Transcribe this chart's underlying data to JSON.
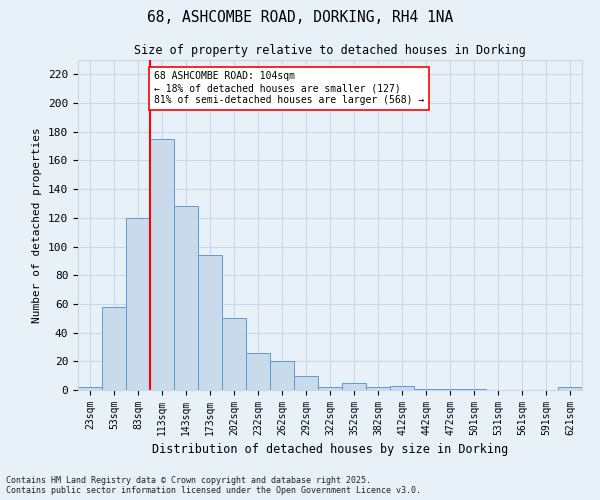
{
  "title_line1": "68, ASHCOMBE ROAD, DORKING, RH4 1NA",
  "title_line2": "Size of property relative to detached houses in Dorking",
  "xlabel": "Distribution of detached houses by size in Dorking",
  "ylabel": "Number of detached properties",
  "categories": [
    "23sqm",
    "53sqm",
    "83sqm",
    "113sqm",
    "143sqm",
    "173sqm",
    "202sqm",
    "232sqm",
    "262sqm",
    "292sqm",
    "322sqm",
    "352sqm",
    "382sqm",
    "412sqm",
    "442sqm",
    "472sqm",
    "501sqm",
    "531sqm",
    "561sqm",
    "591sqm",
    "621sqm"
  ],
  "values": [
    2,
    58,
    120,
    175,
    128,
    94,
    50,
    26,
    20,
    10,
    2,
    5,
    2,
    3,
    1,
    1,
    1,
    0,
    0,
    0,
    2
  ],
  "bar_color": "#c9daea",
  "bar_edge_color": "#5b9bd5",
  "grid_color": "#c8d8e8",
  "vline_x_index": 3,
  "vline_color": "red",
  "annotation_text": "68 ASHCOMBE ROAD: 104sqm\n← 18% of detached houses are smaller (127)\n81% of semi-detached houses are larger (568) →",
  "annotation_box_color": "white",
  "annotation_box_edge": "red",
  "ylim": [
    0,
    230
  ],
  "yticks": [
    0,
    20,
    40,
    60,
    80,
    100,
    120,
    140,
    160,
    180,
    200,
    220
  ],
  "footnote": "Contains HM Land Registry data © Crown copyright and database right 2025.\nContains public sector information licensed under the Open Government Licence v3.0.",
  "bg_color": "#e8f0f8"
}
